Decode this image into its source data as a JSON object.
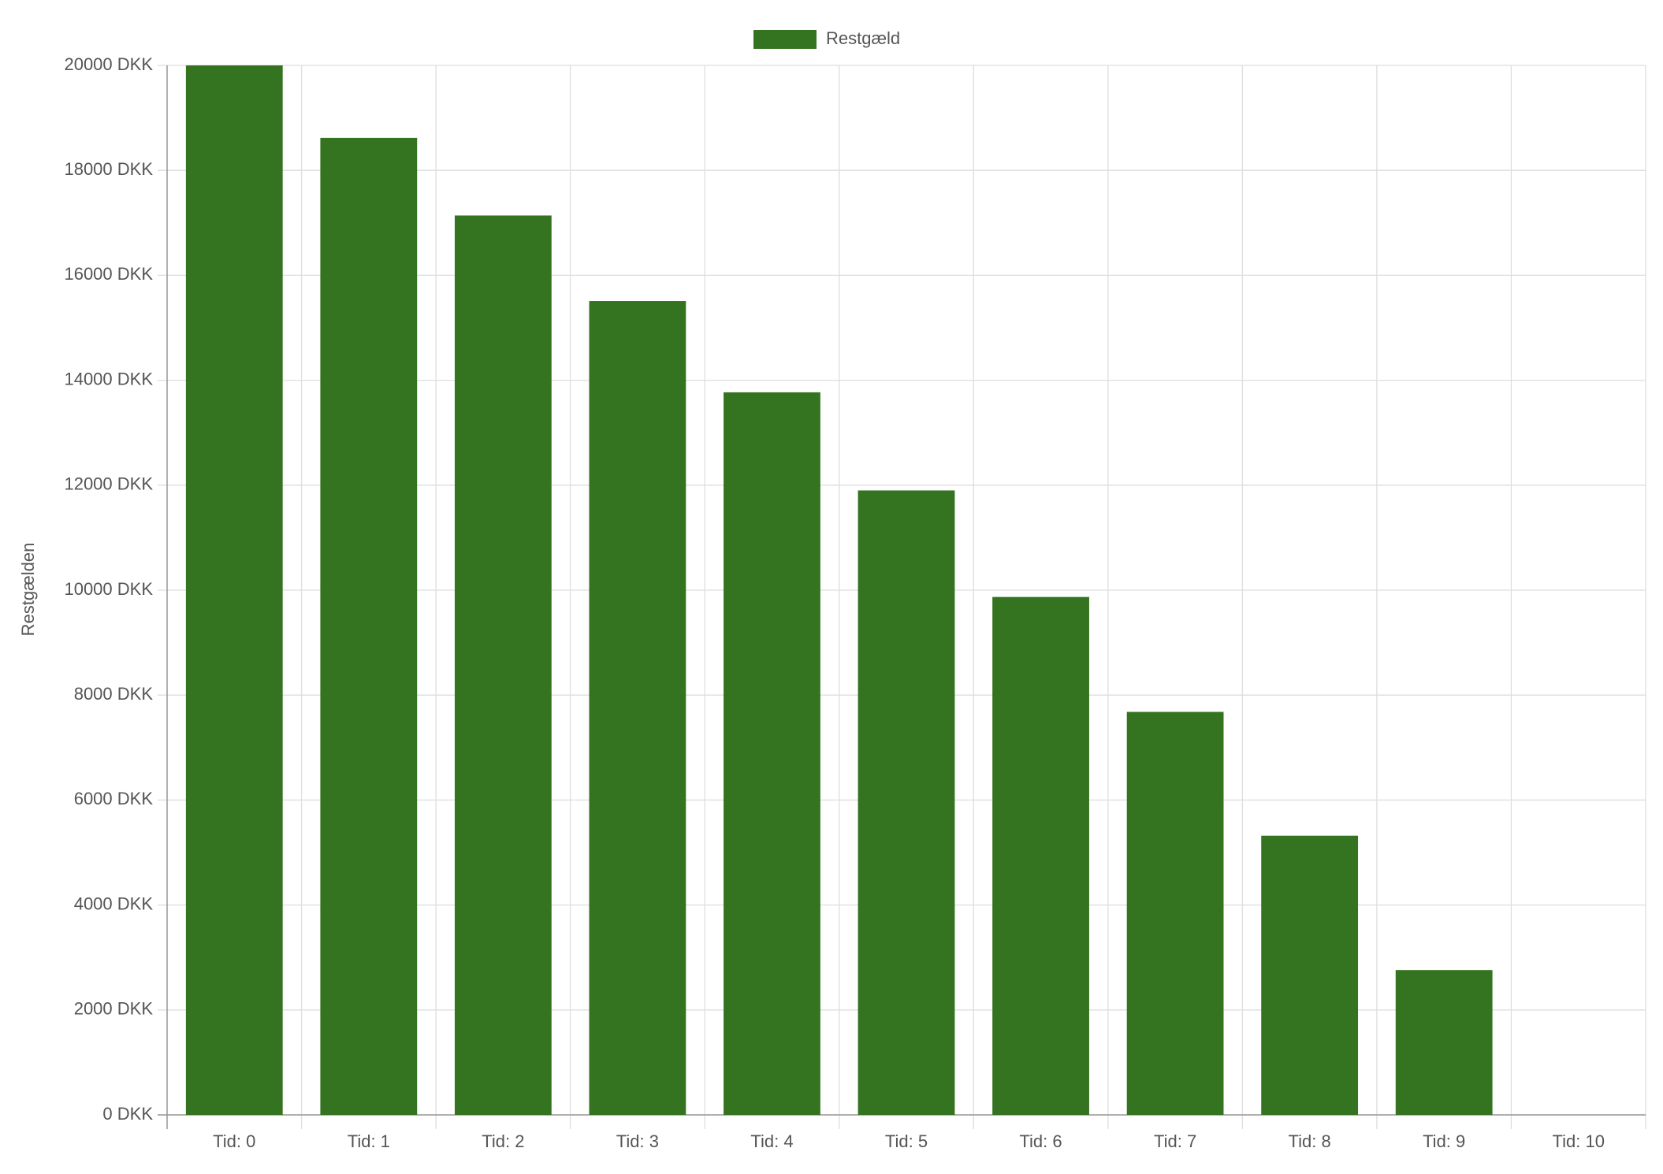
{
  "chart_data": {
    "type": "bar",
    "y_label": "Restgælden",
    "categories": [
      "Tid: 0",
      "Tid: 1",
      "Tid: 2",
      "Tid: 3",
      "Tid: 4",
      "Tid: 5",
      "Tid: 6",
      "Tid: 7",
      "Tid: 8",
      "Tid: 9",
      "Tid: 10"
    ],
    "series": [
      {
        "name": "Restgæld",
        "color": "#347320",
        "values": [
          20000,
          18620,
          17140,
          15510,
          13770,
          11900,
          9870,
          7680,
          5320,
          2760,
          0
        ]
      }
    ],
    "ylim": [
      0,
      20000
    ],
    "yticks": [
      {
        "value": 0,
        "label": "0 DKK"
      },
      {
        "value": 2000,
        "label": "2000 DKK"
      },
      {
        "value": 4000,
        "label": "4000 DKK"
      },
      {
        "value": 6000,
        "label": "6000 DKK"
      },
      {
        "value": 8000,
        "label": "8000 DKK"
      },
      {
        "value": 10000,
        "label": "10000 DKK"
      },
      {
        "value": 12000,
        "label": "12000 DKK"
      },
      {
        "value": 14000,
        "label": "14000 DKK"
      },
      {
        "value": 16000,
        "label": "16000 DKK"
      },
      {
        "value": 18000,
        "label": "18000 DKK"
      },
      {
        "value": 20000,
        "label": "20000 DKK"
      }
    ],
    "grid": true,
    "legend": "top"
  }
}
